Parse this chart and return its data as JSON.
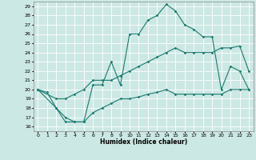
{
  "xlabel": "Humidex (Indice chaleur)",
  "bg_color": "#cce8e4",
  "line_color": "#1a7a6e",
  "grid_color": "#ffffff",
  "xlim": [
    -0.5,
    23.5
  ],
  "ylim": [
    15.5,
    29.5
  ],
  "yticks": [
    16,
    17,
    18,
    19,
    20,
    21,
    22,
    23,
    24,
    25,
    26,
    27,
    28,
    29
  ],
  "xticks": [
    0,
    1,
    2,
    3,
    4,
    5,
    6,
    7,
    8,
    9,
    10,
    11,
    12,
    13,
    14,
    15,
    16,
    17,
    18,
    19,
    20,
    21,
    22,
    23
  ],
  "line1_x": [
    0,
    1,
    2,
    3,
    4,
    5,
    6,
    7,
    8,
    9,
    10,
    11,
    12,
    13,
    14,
    15,
    16,
    17,
    18,
    19,
    20,
    21,
    22,
    23
  ],
  "line1_y": [
    20,
    19.7,
    18,
    16.5,
    16.5,
    16.5,
    20.5,
    20.5,
    23,
    20.5,
    26,
    26,
    27.5,
    28,
    29.2,
    28.5,
    27,
    26.5,
    25.7,
    25.7,
    20,
    22.5,
    22,
    20
  ],
  "line2_x": [
    0,
    2,
    3,
    4,
    5,
    6,
    7,
    8,
    9,
    10,
    11,
    12,
    13,
    14,
    15,
    16,
    17,
    18,
    19,
    20,
    21,
    22,
    23
  ],
  "line2_y": [
    20,
    19,
    19,
    19.5,
    20,
    21,
    21,
    21,
    21.5,
    22,
    22.5,
    23,
    23.5,
    24,
    24.5,
    24,
    24,
    24,
    24,
    24.5,
    24.5,
    24.7,
    22
  ],
  "line3_x": [
    0,
    2,
    3,
    4,
    5,
    6,
    7,
    8,
    9,
    10,
    11,
    12,
    13,
    14,
    15,
    16,
    17,
    18,
    19,
    20,
    21,
    22,
    23
  ],
  "line3_y": [
    20,
    18,
    17,
    16.5,
    16.5,
    17.5,
    18,
    18.5,
    19,
    19,
    19.2,
    19.5,
    19.7,
    20,
    19.5,
    19.5,
    19.5,
    19.5,
    19.5,
    19.5,
    20,
    20,
    20
  ]
}
